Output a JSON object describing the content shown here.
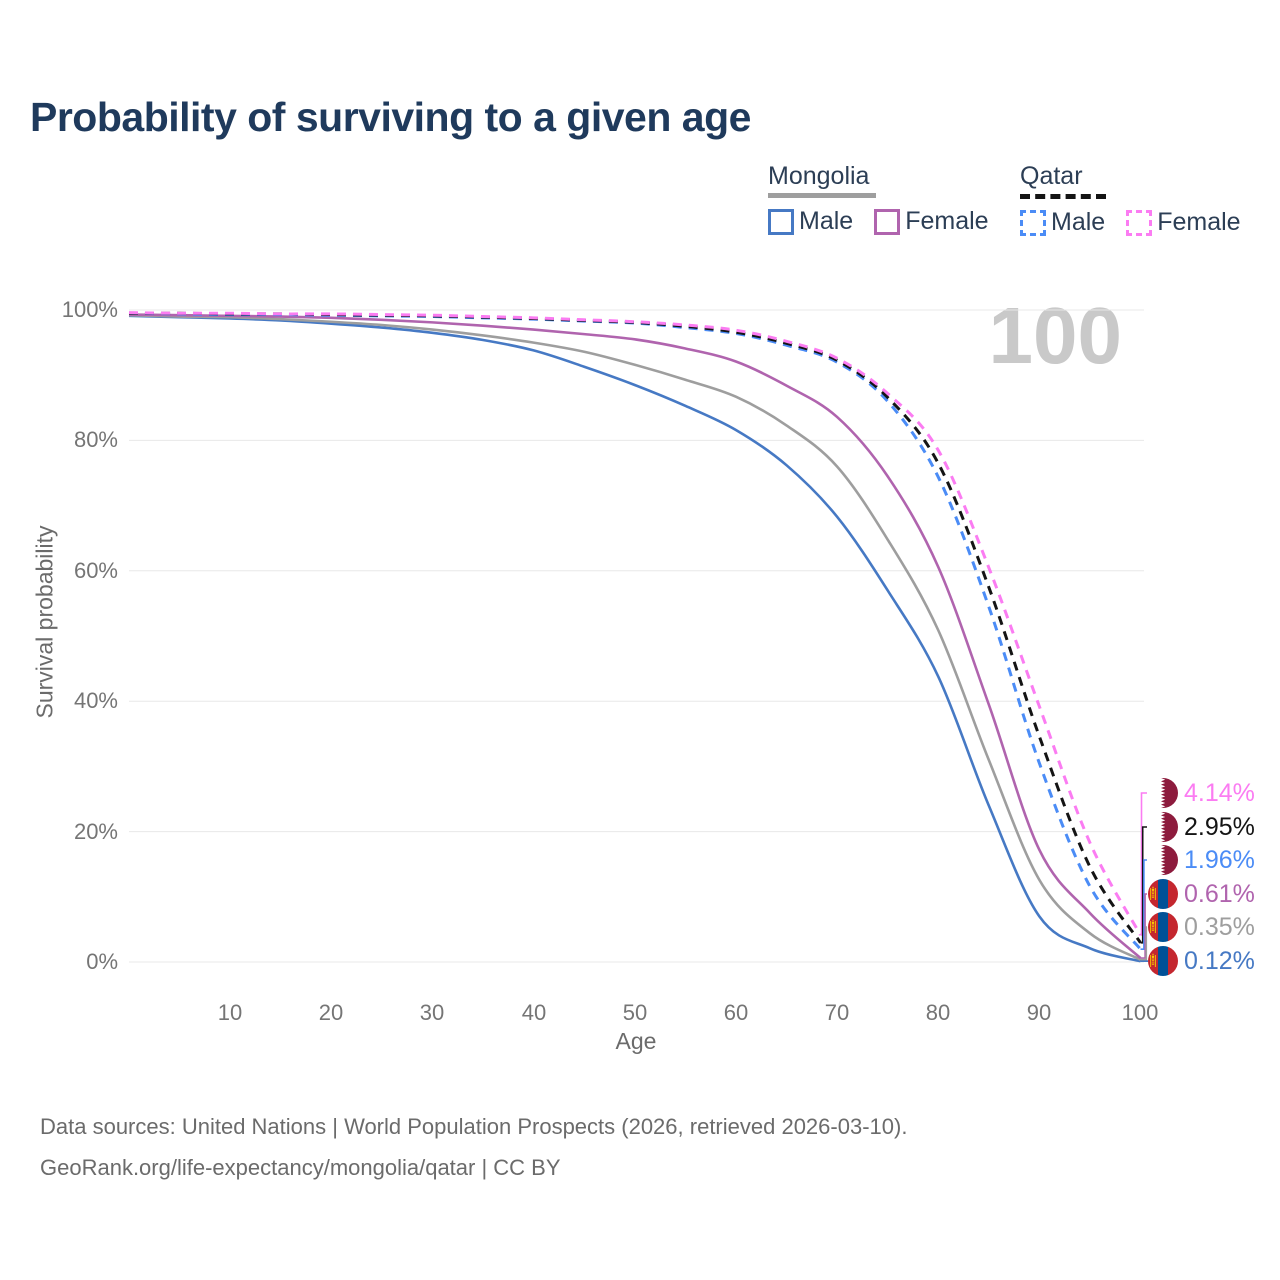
{
  "title": "Probability of surviving to a given age",
  "hover_marker": {
    "age_label": "100"
  },
  "legend": {
    "position": "top-right",
    "groups": [
      {
        "name": "Mongolia",
        "line_style": "solid",
        "header_rule_color": "#9e9e9e",
        "items": [
          {
            "label": "Male",
            "color": "#4679c4"
          },
          {
            "label": "Female",
            "color": "#b064ae"
          }
        ]
      },
      {
        "name": "Qatar",
        "line_style": "dashed",
        "header_rule_color": "#141414",
        "items": [
          {
            "label": "Male",
            "color": "#4b8cf6"
          },
          {
            "label": "Female",
            "color": "#fb7cf2"
          }
        ]
      }
    ]
  },
  "axes": {
    "x": {
      "label": "Age",
      "min": 0,
      "max": 100,
      "tick_labels": [
        "10",
        "20",
        "30",
        "40",
        "50",
        "60",
        "70",
        "80",
        "90",
        "100"
      ],
      "tick_values": [
        10,
        20,
        30,
        40,
        50,
        60,
        70,
        80,
        90,
        100
      ]
    },
    "y": {
      "label": "Survival probability",
      "min": 0,
      "max": 100,
      "tick_labels": [
        "100%",
        "80%",
        "60%",
        "40%",
        "20%",
        "0%"
      ],
      "tick_values": [
        100,
        80,
        60,
        40,
        20,
        0
      ]
    }
  },
  "chart_data": {
    "type": "line",
    "title": "Probability of surviving to a given age",
    "xlabel": "Age",
    "ylabel": "Survival probability",
    "xlim": [
      0,
      100
    ],
    "ylim": [
      0,
      100
    ],
    "grid": "horizontal",
    "grid_color": "#e8e8e8",
    "x": [
      0,
      5,
      10,
      15,
      20,
      25,
      30,
      35,
      40,
      45,
      50,
      55,
      60,
      65,
      70,
      75,
      80,
      85,
      90,
      95,
      100
    ],
    "series": [
      {
        "id": "mongolia-male",
        "country": "Mongolia",
        "group": "Male",
        "color": "#4679c4",
        "dash": false,
        "values": [
          99.1,
          98.9,
          98.7,
          98.4,
          97.9,
          97.3,
          96.5,
          95.4,
          93.8,
          91.3,
          88.5,
          85.3,
          81.6,
          76.2,
          68.3,
          57.0,
          43.8,
          24.0,
          7.0,
          2.1,
          0.12
        ]
      },
      {
        "id": "mongolia-all",
        "country": "Mongolia",
        "group": "Mongolia",
        "color": "#9e9e9e",
        "dash": false,
        "values": [
          99.2,
          99.0,
          98.9,
          98.6,
          98.2,
          97.7,
          97.0,
          96.1,
          95.0,
          93.6,
          91.6,
          89.3,
          86.7,
          82.3,
          76.0,
          64.8,
          50.9,
          31.0,
          12.6,
          4.4,
          0.35
        ]
      },
      {
        "id": "mongolia-female",
        "country": "Mongolia",
        "group": "Female",
        "color": "#b064ae",
        "dash": false,
        "values": [
          99.3,
          99.2,
          99.1,
          99.0,
          98.8,
          98.5,
          98.1,
          97.6,
          97.0,
          96.3,
          95.5,
          94.1,
          92.1,
          88.4,
          83.6,
          74.5,
          60.6,
          39.5,
          17.2,
          7.5,
          0.61
        ]
      },
      {
        "id": "qatar-male",
        "country": "Qatar",
        "group": "Male",
        "color": "#4b8cf6",
        "dash": true,
        "values": [
          99.5,
          99.4,
          99.3,
          99.3,
          99.2,
          99.1,
          99.0,
          98.8,
          98.6,
          98.3,
          98.0,
          97.3,
          96.4,
          94.6,
          92.0,
          86.0,
          74.4,
          54.5,
          30.5,
          11.6,
          1.96
        ]
      },
      {
        "id": "qatar-all",
        "country": "Qatar",
        "group": "Qatar",
        "color": "#141414",
        "dash": true,
        "values": [
          99.5,
          99.5,
          99.4,
          99.4,
          99.3,
          99.2,
          99.1,
          98.9,
          98.7,
          98.4,
          98.1,
          97.5,
          96.6,
          94.9,
          92.3,
          86.6,
          76.5,
          57.5,
          34.6,
          14.6,
          2.95
        ]
      },
      {
        "id": "qatar-female",
        "country": "Qatar",
        "group": "Female",
        "color": "#fb7cf2",
        "dash": true,
        "values": [
          99.6,
          99.5,
          99.5,
          99.4,
          99.4,
          99.3,
          99.2,
          99.0,
          98.8,
          98.5,
          98.2,
          97.7,
          96.9,
          95.2,
          92.6,
          87.2,
          78.5,
          60.5,
          39.2,
          18.3,
          4.14
        ]
      }
    ]
  },
  "end_labels": [
    {
      "series": "qatar-female",
      "flag": "qatar",
      "text": "4.14%",
      "color": "#fb7cf2"
    },
    {
      "series": "qatar-all",
      "flag": "qatar",
      "text": "2.95%",
      "color": "#141414"
    },
    {
      "series": "qatar-male",
      "flag": "qatar",
      "text": "1.96%",
      "color": "#4b8cf6"
    },
    {
      "series": "mongolia-female",
      "flag": "mongolia",
      "text": "0.61%",
      "color": "#b064ae"
    },
    {
      "series": "mongolia-all",
      "flag": "mongolia",
      "text": "0.35%",
      "color": "#9e9e9e"
    },
    {
      "series": "mongolia-male",
      "flag": "mongolia",
      "text": "0.12%",
      "color": "#4679c4"
    }
  ],
  "flag_colors": {
    "qatar": {
      "maroon": "#8d1b3d",
      "white": "#ffffff"
    },
    "mongolia": {
      "red": "#c4272f",
      "blue": "#015197",
      "yellow": "#f9cf02"
    }
  },
  "footer": {
    "line1": "Data sources: United Nations | World Population Prospects (2026, retrieved 2026-03-10).",
    "line2": "GeoRank.org/life-expectancy/mongolia/qatar | CC BY"
  }
}
